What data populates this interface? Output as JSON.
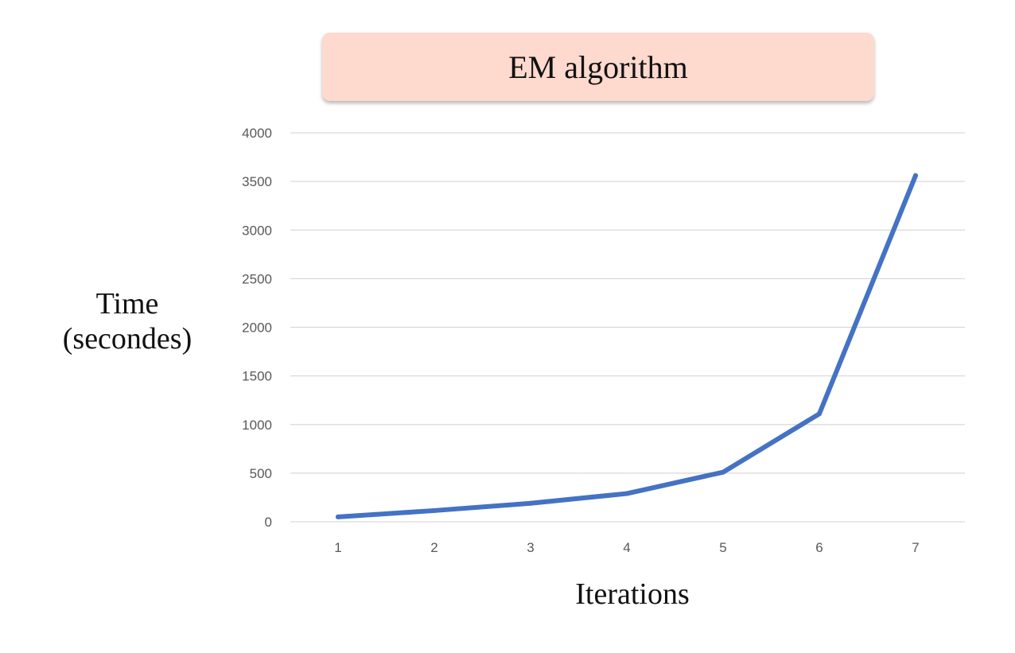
{
  "chart_data": {
    "type": "line",
    "title": "EM algorithm",
    "xlabel": "Iterations",
    "ylabel_lines": [
      "Time",
      "(secondes)"
    ],
    "categories": [
      "1",
      "2",
      "3",
      "4",
      "5",
      "6",
      "7"
    ],
    "series": [
      {
        "values": [
          50,
          115,
          190,
          290,
          510,
          1110,
          3560
        ],
        "color": "#4472c4"
      }
    ],
    "yticks": [
      0,
      500,
      1000,
      1500,
      2000,
      2500,
      3000,
      3500,
      4000
    ],
    "ylim": [
      0,
      4000
    ],
    "grid": true,
    "gridColor": "#d9d9d9",
    "titleBoxColor": "#fdd9ce"
  }
}
